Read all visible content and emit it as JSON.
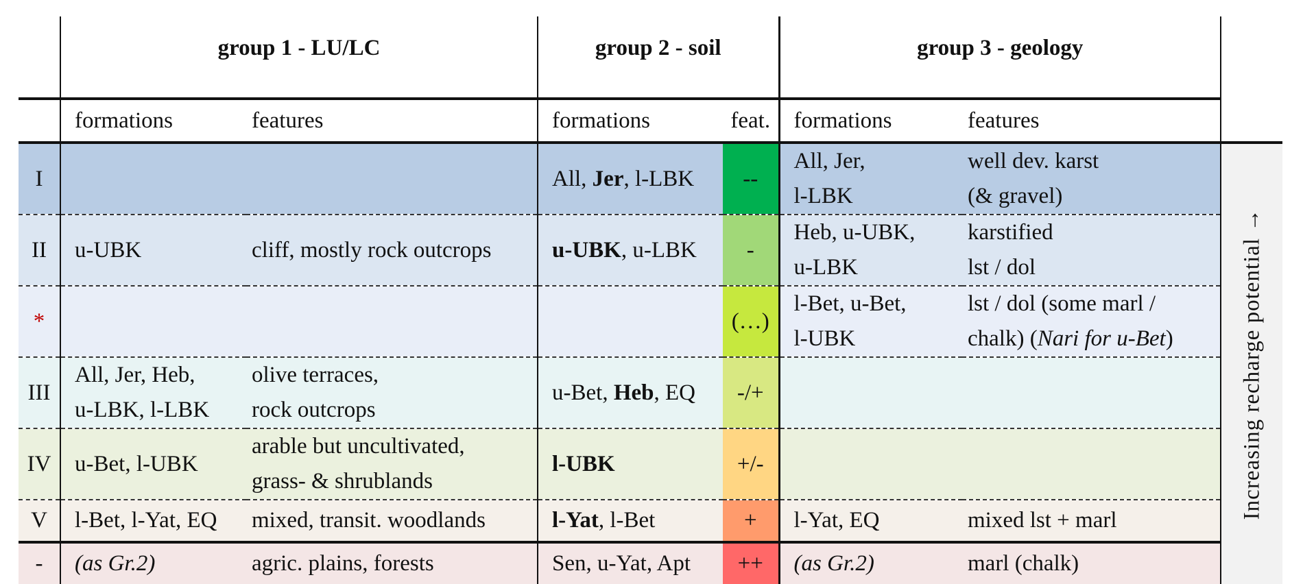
{
  "header": {
    "group1": "group 1 - LU/LC",
    "group2": "group 2 - soil",
    "group3": "group 3 - geology"
  },
  "subheader": {
    "g1_formations": "formations",
    "g1_features": "features",
    "g2_formations": "formations",
    "g2_features": "feat.",
    "g3_formations": "formations",
    "g3_features": "features"
  },
  "side_label": "Increasing recharge potential →",
  "colors": {
    "row_bg": [
      "#b8cce4",
      "#dce6f2",
      "#e9eef8",
      "#e8f4f4",
      "#ebf1de",
      "#f5f0ea",
      "#f4e6e6"
    ],
    "feat_bg": [
      "#00b050",
      "#a1d878",
      "#c6e83e",
      "#d8e882",
      "#ffd683",
      "#ff9b6c",
      "#ff6868"
    ]
  },
  "rows": [
    {
      "rank": "I",
      "g1f": [],
      "g1x": [],
      "g2f": [
        [
          {
            "t": "All, "
          },
          {
            "t": "Jer",
            "b": true
          },
          {
            "t": ", l-LBK"
          }
        ]
      ],
      "feat": "--",
      "g3f": [
        [
          {
            "t": "All, Jer,"
          }
        ],
        [
          {
            "t": "l-LBK"
          }
        ]
      ],
      "g3x": [
        [
          {
            "t": "well dev. karst"
          }
        ],
        [
          {
            "t": "(& gravel)"
          }
        ]
      ]
    },
    {
      "rank": "II",
      "g1f": [
        [
          {
            "t": "u-UBK"
          }
        ]
      ],
      "g1x": [
        [
          {
            "t": "cliff, mostly rock outcrops"
          }
        ]
      ],
      "g2f": [
        [
          {
            "t": "u-UBK",
            "b": true
          },
          {
            "t": ", u-LBK"
          }
        ]
      ],
      "feat": "-",
      "g3f": [
        [
          {
            "t": "Heb, u-UBK,"
          }
        ],
        [
          {
            "t": "u-LBK"
          }
        ]
      ],
      "g3x": [
        [
          {
            "t": "karstified"
          }
        ],
        [
          {
            "t": "lst / dol"
          }
        ]
      ]
    },
    {
      "rank": "*",
      "g1f": [],
      "g1x": [],
      "g2f": [],
      "feat": "(…)",
      "g3f": [
        [
          {
            "t": "l-Bet, u-Bet,"
          }
        ],
        [
          {
            "t": "l-UBK"
          }
        ]
      ],
      "g3x": [
        [
          {
            "t": "lst / dol (some marl /"
          }
        ],
        [
          {
            "t": "chalk) ("
          },
          {
            "t": "Nari for u-Bet",
            "i": true
          },
          {
            "t": ")"
          }
        ]
      ]
    },
    {
      "rank": "III",
      "g1f": [
        [
          {
            "t": "All, Jer, Heb,"
          }
        ],
        [
          {
            "t": "u-LBK, l-LBK"
          }
        ]
      ],
      "g1x": [
        [
          {
            "t": "olive terraces,"
          }
        ],
        [
          {
            "t": "rock outcrops"
          }
        ]
      ],
      "g2f": [
        [
          {
            "t": "u-Bet, "
          },
          {
            "t": "Heb",
            "b": true
          },
          {
            "t": ", EQ"
          }
        ]
      ],
      "feat": "-/+",
      "g3f": [],
      "g3x": []
    },
    {
      "rank": "IV",
      "g1f": [
        [
          {
            "t": "u-Bet, l-UBK"
          }
        ]
      ],
      "g1x": [
        [
          {
            "t": "arable but uncultivated,"
          }
        ],
        [
          {
            "t": "grass- & shrublands"
          }
        ]
      ],
      "g2f": [
        [
          {
            "t": "l-UBK",
            "b": true
          }
        ]
      ],
      "feat": "+/-",
      "g3f": [],
      "g3x": []
    },
    {
      "rank": "V",
      "g1f": [
        [
          {
            "t": "l-Bet, l-Yat, EQ"
          }
        ]
      ],
      "g1x": [
        [
          {
            "t": "mixed, transit. woodlands"
          }
        ]
      ],
      "g2f": [
        [
          {
            "t": "l-Yat",
            "b": true
          },
          {
            "t": ", l-Bet"
          }
        ]
      ],
      "feat": "+",
      "g3f": [
        [
          {
            "t": "l-Yat, EQ"
          }
        ]
      ],
      "g3x": [
        [
          {
            "t": "mixed lst + marl"
          }
        ]
      ]
    },
    {
      "rank": "-",
      "g1f": [
        [
          {
            "t": "(as Gr.2)",
            "i": true
          }
        ]
      ],
      "g1x": [
        [
          {
            "t": "agric. plains, forests"
          }
        ]
      ],
      "g2f": [
        [
          {
            "t": "Sen, u-Yat, Apt"
          }
        ]
      ],
      "feat": "++",
      "g3f": [
        [
          {
            "t": "(as Gr.2)",
            "i": true
          }
        ]
      ],
      "g3x": [
        [
          {
            "t": "marl (chalk)"
          }
        ]
      ]
    }
  ]
}
